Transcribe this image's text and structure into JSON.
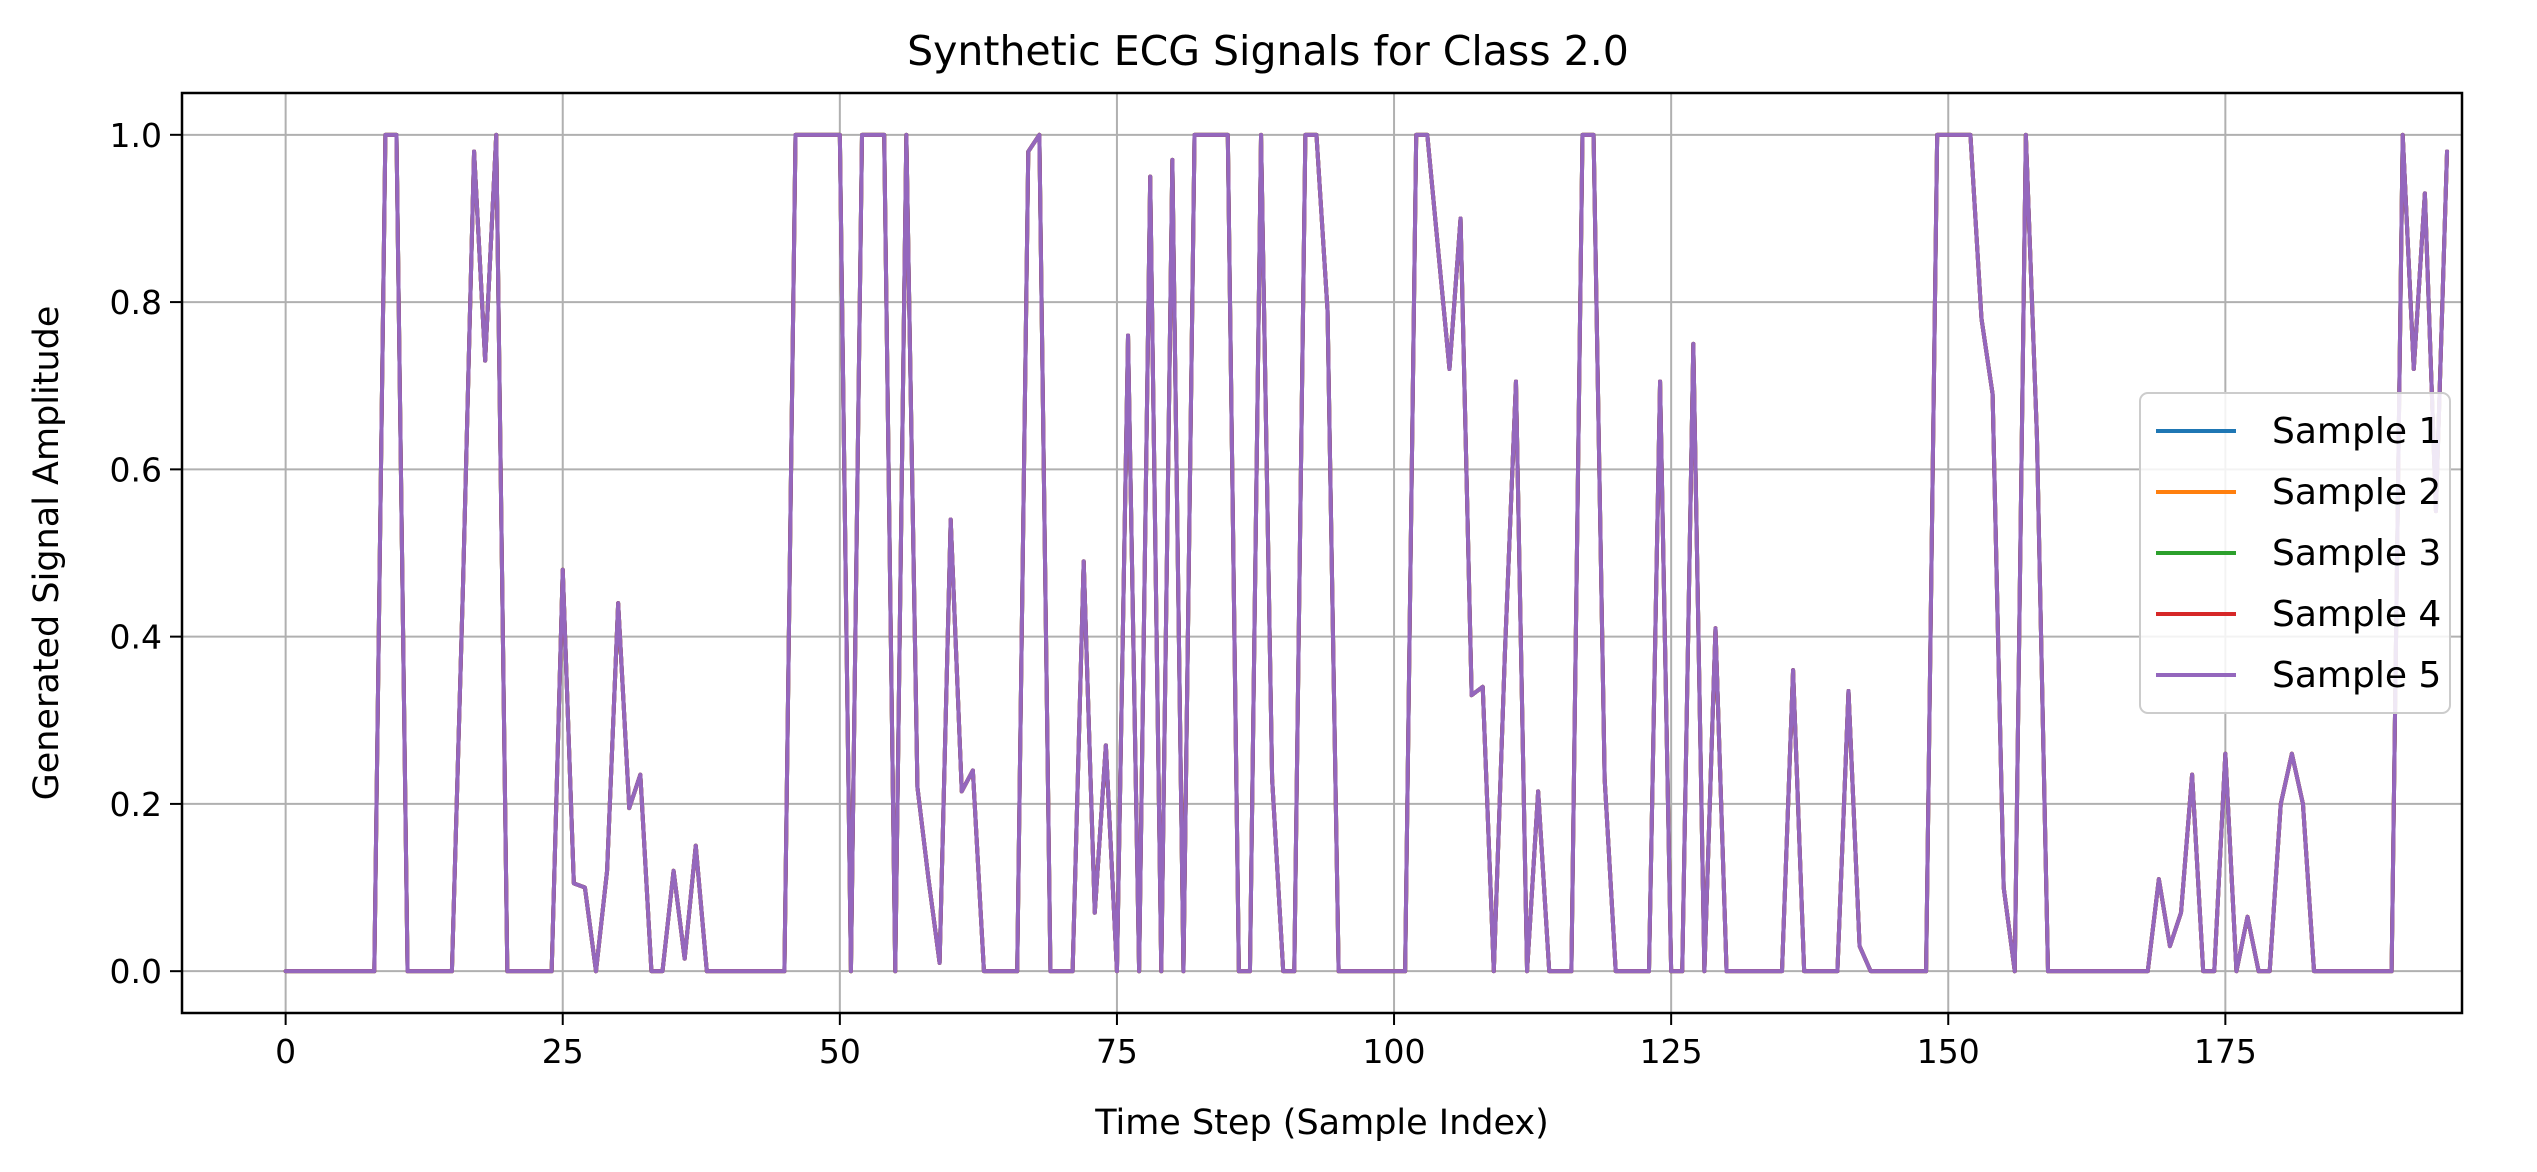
{
  "chart_data": {
    "type": "line",
    "title": "Synthetic ECG Signals for Class 2.0",
    "xlabel": "Time Step (Sample Index)",
    "ylabel": "Generated Signal Amplitude",
    "xlim": [
      -9.35,
      196.35
    ],
    "ylim": [
      -0.05,
      1.05
    ],
    "xticks": [
      0,
      25,
      50,
      75,
      100,
      125,
      150,
      175
    ],
    "yticks": [
      0.0,
      0.2,
      0.4,
      0.6,
      0.8,
      1.0
    ],
    "xtick_labels": [
      "0",
      "25",
      "50",
      "75",
      "100",
      "125",
      "150",
      "175"
    ],
    "ytick_labels": [
      "0.0",
      "0.2",
      "0.4",
      "0.6",
      "0.8",
      "1.0"
    ],
    "grid": true,
    "legend_position": "center-right",
    "series": [
      {
        "name": "Sample 1",
        "color": "#1f77b4",
        "values": [
          0,
          0,
          0,
          0,
          0,
          0,
          0,
          0,
          0,
          1,
          1,
          0,
          0,
          0,
          0,
          0,
          0.46,
          0.98,
          0.73,
          1,
          0,
          0,
          0,
          0,
          0,
          0.48,
          0.105,
          0.1,
          0,
          0.12,
          0.44,
          0.195,
          0.235,
          0,
          0,
          0.12,
          0.015,
          0.15,
          0,
          0,
          0,
          0,
          0,
          0,
          0,
          0,
          1,
          1,
          1,
          1,
          1,
          0,
          1,
          1,
          1,
          0,
          1,
          0.22,
          0.11,
          0.01,
          0.54,
          0.215,
          0.24,
          0,
          0,
          0,
          0,
          0.98,
          1,
          0,
          0,
          0,
          0.49,
          0.07,
          0.27,
          0,
          0.76,
          0,
          0.95,
          0,
          0.97,
          0,
          1,
          1,
          1,
          1,
          0,
          0,
          1,
          0.23,
          0,
          0,
          1,
          1,
          0.79,
          0,
          0,
          0,
          0,
          0,
          0,
          0,
          1,
          1,
          0.86,
          0.72,
          0.9,
          0.33,
          0.34,
          0,
          0.38,
          0.705,
          0,
          0.215,
          0,
          0,
          0,
          1,
          1,
          0.23,
          0,
          0,
          0,
          0,
          0.705,
          0,
          0,
          0.75,
          0,
          0.41,
          0,
          0,
          0,
          0,
          0,
          0,
          0.36,
          0,
          0,
          0,
          0,
          0.335,
          0.03,
          0,
          0,
          0,
          0,
          0,
          0,
          1,
          1,
          1,
          1,
          0.78,
          0.69,
          0.1,
          0,
          1,
          0.64,
          0,
          0,
          0,
          0,
          0,
          0,
          0,
          0,
          0,
          0,
          0.11,
          0.03,
          0.07,
          0.235,
          0,
          0,
          0.26,
          0,
          0.065,
          0,
          0,
          0.2,
          0.26,
          0.2,
          0,
          0,
          0,
          0,
          0,
          0,
          0,
          0,
          1,
          0.72,
          0.93,
          0.55,
          0.98
        ]
      },
      {
        "name": "Sample 2",
        "color": "#ff7f0e",
        "values": [
          0,
          0,
          0,
          0,
          0,
          0,
          0,
          0,
          0,
          1,
          1,
          0,
          0,
          0,
          0,
          0,
          0.46,
          0.98,
          0.73,
          1,
          0,
          0,
          0,
          0,
          0,
          0.48,
          0.105,
          0.1,
          0,
          0.12,
          0.44,
          0.195,
          0.235,
          0,
          0,
          0.12,
          0.015,
          0.15,
          0,
          0,
          0,
          0,
          0,
          0,
          0,
          0,
          1,
          1,
          1,
          1,
          1,
          0,
          1,
          1,
          1,
          0,
          1,
          0.22,
          0.11,
          0.01,
          0.54,
          0.215,
          0.24,
          0,
          0,
          0,
          0,
          0.98,
          1,
          0,
          0,
          0,
          0.49,
          0.07,
          0.27,
          0,
          0.76,
          0,
          0.95,
          0,
          0.97,
          0,
          1,
          1,
          1,
          1,
          0,
          0,
          1,
          0.23,
          0,
          0,
          1,
          1,
          0.79,
          0,
          0,
          0,
          0,
          0,
          0,
          0,
          1,
          1,
          0.86,
          0.72,
          0.9,
          0.33,
          0.34,
          0,
          0.38,
          0.705,
          0,
          0.215,
          0,
          0,
          0,
          1,
          1,
          0.23,
          0,
          0,
          0,
          0,
          0.705,
          0,
          0,
          0.75,
          0,
          0.41,
          0,
          0,
          0,
          0,
          0,
          0,
          0.36,
          0,
          0,
          0,
          0,
          0.335,
          0.03,
          0,
          0,
          0,
          0,
          0,
          0,
          1,
          1,
          1,
          1,
          0.78,
          0.69,
          0.1,
          0,
          1,
          0.64,
          0,
          0,
          0,
          0,
          0,
          0,
          0,
          0,
          0,
          0,
          0.11,
          0.03,
          0.07,
          0.235,
          0,
          0,
          0.26,
          0,
          0.065,
          0,
          0,
          0.2,
          0.26,
          0.2,
          0,
          0,
          0,
          0,
          0,
          0,
          0,
          0,
          1,
          0.72,
          0.93,
          0.55,
          0.98
        ]
      },
      {
        "name": "Sample 3",
        "color": "#2ca02c",
        "values": [
          0,
          0,
          0,
          0,
          0,
          0,
          0,
          0,
          0,
          1,
          1,
          0,
          0,
          0,
          0,
          0,
          0.46,
          0.98,
          0.73,
          1,
          0,
          0,
          0,
          0,
          0,
          0.48,
          0.105,
          0.1,
          0,
          0.12,
          0.44,
          0.195,
          0.235,
          0,
          0,
          0.12,
          0.015,
          0.15,
          0,
          0,
          0,
          0,
          0,
          0,
          0,
          0,
          1,
          1,
          1,
          1,
          1,
          0,
          1,
          1,
          1,
          0,
          1,
          0.22,
          0.11,
          0.01,
          0.54,
          0.215,
          0.24,
          0,
          0,
          0,
          0,
          0.98,
          1,
          0,
          0,
          0,
          0.49,
          0.07,
          0.27,
          0,
          0.76,
          0,
          0.95,
          0,
          0.97,
          0,
          1,
          1,
          1,
          1,
          0,
          0,
          1,
          0.23,
          0,
          0,
          1,
          1,
          0.79,
          0,
          0,
          0,
          0,
          0,
          0,
          0,
          1,
          1,
          0.86,
          0.72,
          0.9,
          0.33,
          0.34,
          0,
          0.38,
          0.705,
          0,
          0.215,
          0,
          0,
          0,
          1,
          1,
          0.23,
          0,
          0,
          0,
          0,
          0.705,
          0,
          0,
          0.75,
          0,
          0.41,
          0,
          0,
          0,
          0,
          0,
          0,
          0.36,
          0,
          0,
          0,
          0,
          0.335,
          0.03,
          0,
          0,
          0,
          0,
          0,
          0,
          1,
          1,
          1,
          1,
          0.78,
          0.69,
          0.1,
          0,
          1,
          0.64,
          0,
          0,
          0,
          0,
          0,
          0,
          0,
          0,
          0,
          0,
          0.11,
          0.03,
          0.07,
          0.235,
          0,
          0,
          0.26,
          0,
          0.065,
          0,
          0,
          0.2,
          0.26,
          0.2,
          0,
          0,
          0,
          0,
          0,
          0,
          0,
          0,
          1,
          0.72,
          0.93,
          0.55,
          0.98
        ]
      },
      {
        "name": "Sample 4",
        "color": "#d62728",
        "values": [
          0,
          0,
          0,
          0,
          0,
          0,
          0,
          0,
          0,
          1,
          1,
          0,
          0,
          0,
          0,
          0,
          0.46,
          0.98,
          0.73,
          1,
          0,
          0,
          0,
          0,
          0,
          0.48,
          0.105,
          0.1,
          0,
          0.12,
          0.44,
          0.195,
          0.235,
          0,
          0,
          0.12,
          0.015,
          0.15,
          0,
          0,
          0,
          0,
          0,
          0,
          0,
          0,
          1,
          1,
          1,
          1,
          1,
          0,
          1,
          1,
          1,
          0,
          1,
          0.22,
          0.11,
          0.01,
          0.54,
          0.215,
          0.24,
          0,
          0,
          0,
          0,
          0.98,
          1,
          0,
          0,
          0,
          0.49,
          0.07,
          0.27,
          0,
          0.76,
          0,
          0.95,
          0,
          0.97,
          0,
          1,
          1,
          1,
          1,
          0,
          0,
          1,
          0.23,
          0,
          0,
          1,
          1,
          0.79,
          0,
          0,
          0,
          0,
          0,
          0,
          0,
          1,
          1,
          0.86,
          0.72,
          0.9,
          0.33,
          0.34,
          0,
          0.38,
          0.705,
          0,
          0.215,
          0,
          0,
          0,
          1,
          1,
          0.23,
          0,
          0,
          0,
          0,
          0.705,
          0,
          0,
          0.75,
          0,
          0.41,
          0,
          0,
          0,
          0,
          0,
          0,
          0.36,
          0,
          0,
          0,
          0,
          0.335,
          0.03,
          0,
          0,
          0,
          0,
          0,
          0,
          1,
          1,
          1,
          1,
          0.78,
          0.69,
          0.1,
          0,
          1,
          0.64,
          0,
          0,
          0,
          0,
          0,
          0,
          0,
          0,
          0,
          0,
          0.11,
          0.03,
          0.07,
          0.235,
          0,
          0,
          0.26,
          0,
          0.065,
          0,
          0,
          0.2,
          0.26,
          0.2,
          0,
          0,
          0,
          0,
          0,
          0,
          0,
          0,
          1,
          0.72,
          0.93,
          0.55,
          0.98
        ]
      },
      {
        "name": "Sample 5",
        "color": "#9467bd",
        "values": [
          0,
          0,
          0,
          0,
          0,
          0,
          0,
          0,
          0,
          1,
          1,
          0,
          0,
          0,
          0,
          0,
          0.46,
          0.98,
          0.73,
          1,
          0,
          0,
          0,
          0,
          0,
          0.48,
          0.105,
          0.1,
          0,
          0.12,
          0.44,
          0.195,
          0.235,
          0,
          0,
          0.12,
          0.015,
          0.15,
          0,
          0,
          0,
          0,
          0,
          0,
          0,
          0,
          1,
          1,
          1,
          1,
          1,
          0,
          1,
          1,
          1,
          0,
          1,
          0.22,
          0.11,
          0.01,
          0.54,
          0.215,
          0.24,
          0,
          0,
          0,
          0,
          0.98,
          1,
          0,
          0,
          0,
          0.49,
          0.07,
          0.27,
          0,
          0.76,
          0,
          0.95,
          0,
          0.97,
          0,
          1,
          1,
          1,
          1,
          0,
          0,
          1,
          0.23,
          0,
          0,
          1,
          1,
          0.79,
          0,
          0,
          0,
          0,
          0,
          0,
          0,
          1,
          1,
          0.86,
          0.72,
          0.9,
          0.33,
          0.34,
          0,
          0.38,
          0.705,
          0,
          0.215,
          0,
          0,
          0,
          1,
          1,
          0.23,
          0,
          0,
          0,
          0,
          0.705,
          0,
          0,
          0.75,
          0,
          0.41,
          0,
          0,
          0,
          0,
          0,
          0,
          0.36,
          0,
          0,
          0,
          0,
          0.335,
          0.03,
          0,
          0,
          0,
          0,
          0,
          0,
          1,
          1,
          1,
          1,
          0.78,
          0.69,
          0.1,
          0,
          1,
          0.64,
          0,
          0,
          0,
          0,
          0,
          0,
          0,
          0,
          0,
          0,
          0.11,
          0.03,
          0.07,
          0.235,
          0,
          0,
          0.26,
          0,
          0.065,
          0,
          0,
          0.2,
          0.26,
          0.2,
          0,
          0,
          0,
          0,
          0,
          0,
          0,
          0,
          1,
          0.72,
          0.93,
          0.55,
          0.98
        ]
      }
    ]
  }
}
